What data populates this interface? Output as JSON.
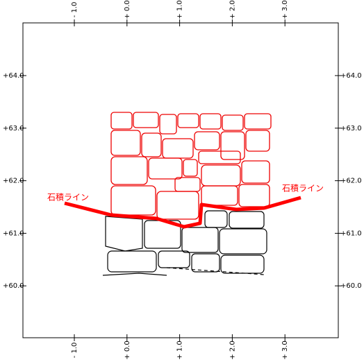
{
  "x_labels": [
    "- 1.0",
    "+ 0.0",
    "+ 1.0",
    "+ 2.0",
    "+ 3.0"
  ],
  "y_labels": [
    "+64.0",
    "+63.0",
    "+62.0",
    "+61.0",
    "+60.0"
  ],
  "annotations": [
    "石積ライン",
    "石積ライン"
  ]
}
